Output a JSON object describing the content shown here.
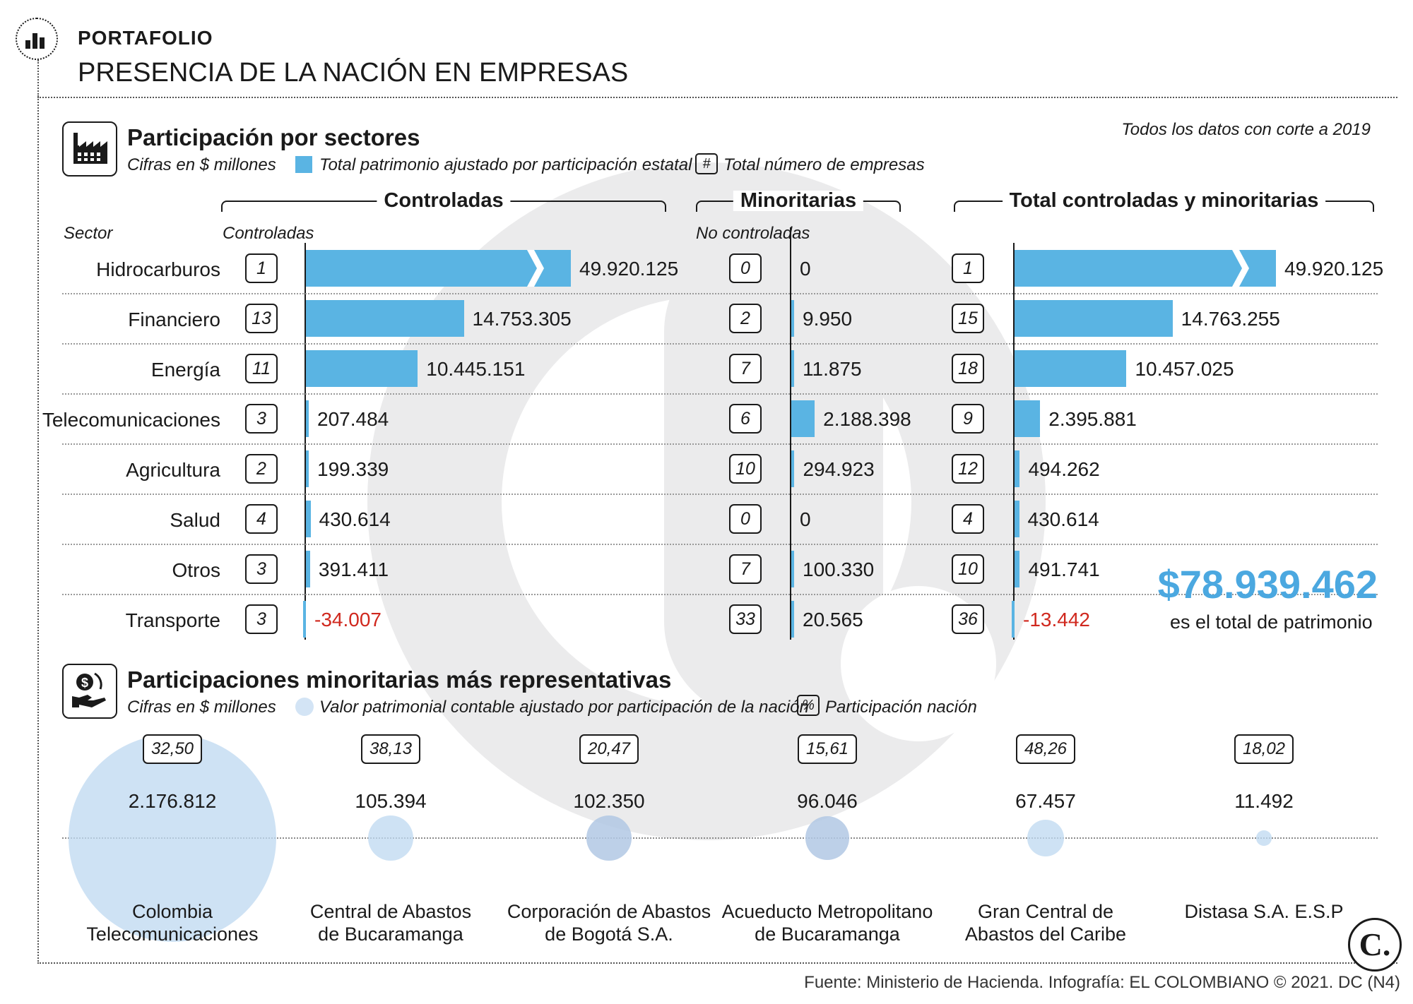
{
  "header": {
    "kicker": "PORTAFOLIO",
    "title": "PRESENCIA DE LA NACIÓN EN EMPRESAS"
  },
  "section1": {
    "title": "Participación por sectores",
    "units": "Cifras en $ millones",
    "legend_bar": "Total patrimonio ajustado por participación estatal",
    "legend_count_symbol": "#",
    "legend_count": "Total número de empresas",
    "cutoff_note": "Todos los datos con corte a 2019",
    "group_controladas": "Controladas",
    "group_minoritarias": "Minoritarias",
    "group_total": "Total controladas y minoritarias",
    "col_sector": "Sector",
    "col_controladas": "Controladas",
    "col_no_controladas": "No controladas"
  },
  "chart_data": [
    {
      "type": "bar",
      "title": "Participación por sectores",
      "subtitle": "Cifras en $ millones",
      "categories": [
        "Hidrocarburos",
        "Financiero",
        "Energía",
        "Telecomunicaciones",
        "Agricultura",
        "Salud",
        "Otros",
        "Transporte"
      ],
      "series": [
        {
          "name": "Controladas",
          "counts": [
            "1",
            "13",
            "11",
            "3",
            "2",
            "4",
            "3",
            "3"
          ],
          "labels": [
            "49.920.125",
            "14.753.305",
            "10.445.151",
            "207.484",
            "199.339",
            "430.614",
            "391.411",
            "-34.007"
          ],
          "values": [
            49920125,
            14753305,
            10445151,
            207484,
            199339,
            430614,
            391411,
            -34007
          ]
        },
        {
          "name": "Minoritarias",
          "counts": [
            "0",
            "2",
            "7",
            "6",
            "10",
            "0",
            "7",
            "33"
          ],
          "labels": [
            "0",
            "9.950",
            "11.875",
            "2.188.398",
            "294.923",
            "0",
            "100.330",
            "20.565"
          ],
          "values": [
            0,
            9950,
            11875,
            2188398,
            294923,
            0,
            100330,
            20565
          ]
        },
        {
          "name": "Total controladas y minoritarias",
          "counts": [
            "1",
            "15",
            "18",
            "9",
            "12",
            "4",
            "10",
            "36"
          ],
          "labels": [
            "49.920.125",
            "14.763.255",
            "10.457.025",
            "2.395.881",
            "494.262",
            "430.614",
            "491.741",
            "-13.442"
          ],
          "values": [
            49920125,
            14763255,
            10457025,
            2395881,
            494262,
            430614,
            491741,
            -13442
          ]
        }
      ],
      "total_value": "$78.939.462",
      "total_caption": "es el total de patrimonio"
    },
    {
      "type": "scatter",
      "title": "Participaciones minoritarias más representativas",
      "subtitle": "Cifras en $ millones",
      "categories": [
        "Colombia Telecomunicaciones",
        "Central de Abastos de Bucaramanga",
        "Corporación de Abastos de Bogotá S.A.",
        "Acueducto Metropolitano de Bucaramanga",
        "Gran Central de Abastos del Caribe",
        "Distasa S.A. E.S.P"
      ],
      "names": [
        [
          "Colombia",
          "Telecomunicaciones"
        ],
        [
          "Central de Abastos",
          "de Bucaramanga"
        ],
        [
          "Corporación de Abastos",
          "de Bogotá S.A."
        ],
        [
          "Acueducto Metropolitano",
          "de Bucaramanga"
        ],
        [
          "Gran Central de",
          "Abastos del Caribe"
        ],
        [
          "Distasa S.A. E.S.P",
          ""
        ]
      ],
      "percent_labels": [
        "32,50",
        "38,13",
        "20,47",
        "15,61",
        "48,26",
        "18,02"
      ],
      "value_labels": [
        "2.176.812",
        "105.394",
        "102.350",
        "96.046",
        "67.457",
        "11.492"
      ],
      "values": [
        2176812,
        105394,
        102350,
        96046,
        67457,
        11492
      ]
    }
  ],
  "section2": {
    "title": "Participaciones minoritarias más representativas",
    "units": "Cifras en $ millones",
    "legend_circle": "Valor patrimonial contable ajustado por participación de la nación",
    "legend_pct_symbol": "%",
    "legend_pct": "Participación nación"
  },
  "footer": {
    "source": "Fuente: Ministerio de Hacienda. Infografía: EL COLOMBIANO © 2021. DC (N4)",
    "logo_text": "C."
  },
  "colors": {
    "bar": "#5ab4e3",
    "total": "#4ba8e0",
    "negative": "#d0281e",
    "circle": "#bed8f0"
  }
}
